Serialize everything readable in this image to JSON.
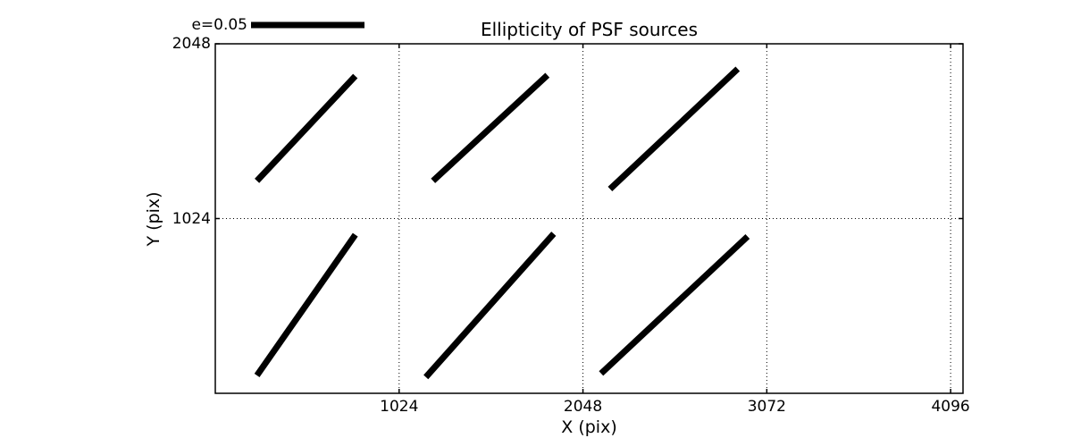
{
  "chart_data": {
    "type": "line",
    "subtype": "ellipticity-whisker-plot",
    "title": "Ellipticity of PSF sources",
    "xlabel": "X (pix)",
    "ylabel": "Y (pix)",
    "xlim": [
      0,
      4165
    ],
    "ylim": [
      0,
      2048
    ],
    "xticks": [
      1024,
      2048,
      3072,
      4096
    ],
    "yticks": [
      1024,
      2048
    ],
    "grid": "dotted lines at every tick, both axes",
    "legend": {
      "label": "e=0.05",
      "e_value": 0.05,
      "position": "above plot, upper left"
    },
    "colors": {
      "foreground": "#000000",
      "background": "#ffffff"
    },
    "whiskers": [
      {
        "x1": 232,
        "y1": 1245,
        "x2": 780,
        "y2": 1859
      },
      {
        "x1": 1213,
        "y1": 1245,
        "x2": 1850,
        "y2": 1864
      },
      {
        "x1": 2199,
        "y1": 1197,
        "x2": 2910,
        "y2": 1901
      },
      {
        "x1": 232,
        "y1": 105,
        "x2": 780,
        "y2": 929
      },
      {
        "x1": 1173,
        "y1": 95,
        "x2": 1885,
        "y2": 935
      },
      {
        "x1": 2149,
        "y1": 116,
        "x2": 2965,
        "y2": 919
      }
    ]
  }
}
